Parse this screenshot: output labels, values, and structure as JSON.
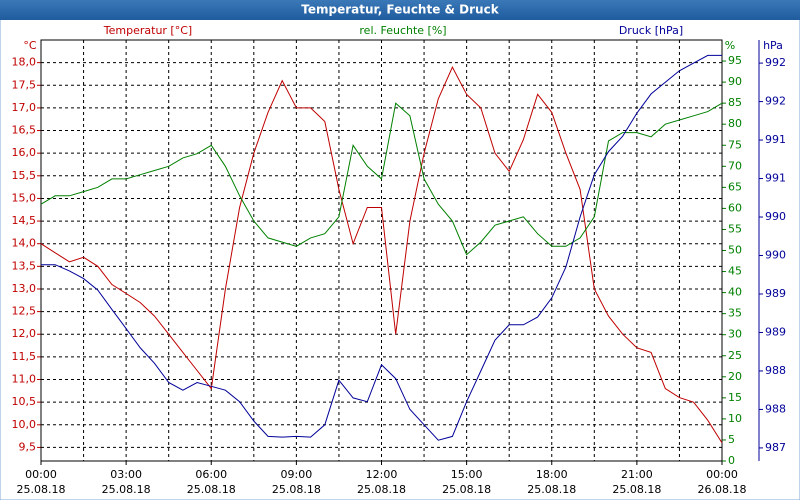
{
  "chart_data": {
    "type": "line",
    "title": "Temperatur, Feuchte & Druck",
    "y_unit": "°C",
    "y2_unit": "%",
    "y3_unit": "hPa",
    "x": [
      0,
      0.5,
      1,
      1.5,
      2,
      2.5,
      3,
      3.5,
      4,
      4.5,
      5,
      5.5,
      6,
      6.5,
      7,
      7.5,
      8,
      8.5,
      9,
      9.5,
      10,
      10.5,
      11,
      11.5,
      12,
      12.5,
      13,
      13.5,
      14,
      14.5,
      15,
      15.5,
      16,
      16.5,
      17,
      17.5,
      18,
      18.5,
      19,
      19.5,
      20,
      20.5,
      21,
      21.5,
      22,
      22.5,
      23,
      23.5,
      24
    ],
    "xlim": [
      0,
      24
    ],
    "xticks": [
      {
        "value": 0,
        "time": "00:00",
        "date": "25.08.18"
      },
      {
        "value": 3,
        "time": "03:00",
        "date": "25.08.18"
      },
      {
        "value": 6,
        "time": "06:00",
        "date": "25.08.18"
      },
      {
        "value": 9,
        "time": "09:00",
        "date": "25.08.18"
      },
      {
        "value": 12,
        "time": "12:00",
        "date": "25.08.18"
      },
      {
        "value": 15,
        "time": "15:00",
        "date": "25.08.18"
      },
      {
        "value": 18,
        "time": "18:00",
        "date": "25.08.18"
      },
      {
        "value": 21,
        "time": "21:00",
        "date": "25.08.18"
      },
      {
        "value": 24,
        "time": "00:00",
        "date": "26.08.18"
      }
    ],
    "x_minor_grid": true,
    "grid": true,
    "ylim": [
      9.2,
      18.5
    ],
    "yticks": [
      {
        "value": 9.5,
        "label": "9,5"
      },
      {
        "value": 10,
        "label": "10,0"
      },
      {
        "value": 10.5,
        "label": "10,5"
      },
      {
        "value": 11,
        "label": "11,0"
      },
      {
        "value": 11.5,
        "label": "11,5"
      },
      {
        "value": 12,
        "label": "12,0"
      },
      {
        "value": 12.5,
        "label": "12,5"
      },
      {
        "value": 13,
        "label": "13,0"
      },
      {
        "value": 13.5,
        "label": "13,5"
      },
      {
        "value": 14,
        "label": "14,0"
      },
      {
        "value": 14.5,
        "label": "14,5"
      },
      {
        "value": 15,
        "label": "15,0"
      },
      {
        "value": 15.5,
        "label": "15,5"
      },
      {
        "value": 16,
        "label": "16,0"
      },
      {
        "value": 16.5,
        "label": "16,5"
      },
      {
        "value": 17,
        "label": "17,0"
      },
      {
        "value": 17.5,
        "label": "17,5"
      },
      {
        "value": 18,
        "label": "18,0"
      }
    ],
    "y2lim": [
      0,
      100
    ],
    "y2ticks": [
      0,
      5,
      10,
      15,
      20,
      25,
      30,
      35,
      40,
      45,
      50,
      55,
      60,
      65,
      70,
      75,
      80,
      85,
      90,
      95
    ],
    "y3lim": [
      986.83,
      992.3
    ],
    "y3ticks": [
      {
        "value": 987,
        "label": "987"
      },
      {
        "value": 987.5,
        "label": "988"
      },
      {
        "value": 988,
        "label": "988"
      },
      {
        "value": 988.5,
        "label": "989"
      },
      {
        "value": 989,
        "label": "989"
      },
      {
        "value": 989.5,
        "label": "990"
      },
      {
        "value": 990,
        "label": "990"
      },
      {
        "value": 990.5,
        "label": "991"
      },
      {
        "value": 991,
        "label": "991"
      },
      {
        "value": 991.5,
        "label": "992"
      },
      {
        "value": 992,
        "label": "992"
      }
    ],
    "series": [
      {
        "name": "Temperatur [°C]",
        "color": "#c00000",
        "axis": "y",
        "values": [
          14.0,
          13.8,
          13.6,
          13.7,
          13.5,
          13.1,
          12.9,
          12.7,
          12.4,
          12.0,
          11.6,
          11.2,
          10.8,
          13.0,
          14.8,
          16.0,
          16.9,
          17.6,
          17.0,
          17.0,
          16.7,
          15.2,
          14.0,
          14.8,
          14.8,
          12.0,
          14.5,
          16.0,
          17.2,
          17.9,
          17.3,
          17.0,
          16.0,
          15.6,
          16.3,
          17.3,
          16.9,
          16.0,
          15.2,
          13.0,
          12.4,
          12.0,
          11.7,
          11.6,
          10.8,
          10.6,
          10.5,
          10.1,
          9.6
        ]
      },
      {
        "name": "rel. Feuchte [%]",
        "color": "#008000",
        "axis": "y2",
        "values": [
          61,
          63,
          63,
          64,
          65,
          67,
          67,
          68,
          69,
          70,
          72,
          73,
          75,
          70,
          63,
          57,
          53,
          52,
          51,
          53,
          54,
          58,
          75,
          70,
          67,
          85,
          82,
          67,
          61,
          57,
          49,
          52,
          56,
          57,
          58,
          54,
          51,
          51,
          53,
          58,
          76,
          78,
          78,
          77,
          80,
          81,
          82,
          83,
          85
        ]
      },
      {
        "name": "Druck [hPa]",
        "color": "#000099",
        "axis": "y3",
        "values": [
          989.38,
          989.38,
          989.3,
          989.2,
          989.05,
          988.8,
          988.55,
          988.3,
          988.1,
          987.85,
          987.75,
          987.85,
          987.8,
          987.75,
          987.6,
          987.35,
          987.15,
          987.14,
          987.15,
          987.14,
          987.3,
          987.88,
          987.65,
          987.6,
          988.08,
          987.9,
          987.5,
          987.3,
          987.1,
          987.15,
          987.6,
          988.0,
          988.4,
          988.6,
          988.6,
          988.7,
          988.95,
          989.35,
          990.0,
          990.55,
          990.85,
          991.05,
          991.35,
          991.6,
          991.75,
          991.9,
          992.0,
          992.1,
          992.1
        ]
      }
    ]
  }
}
